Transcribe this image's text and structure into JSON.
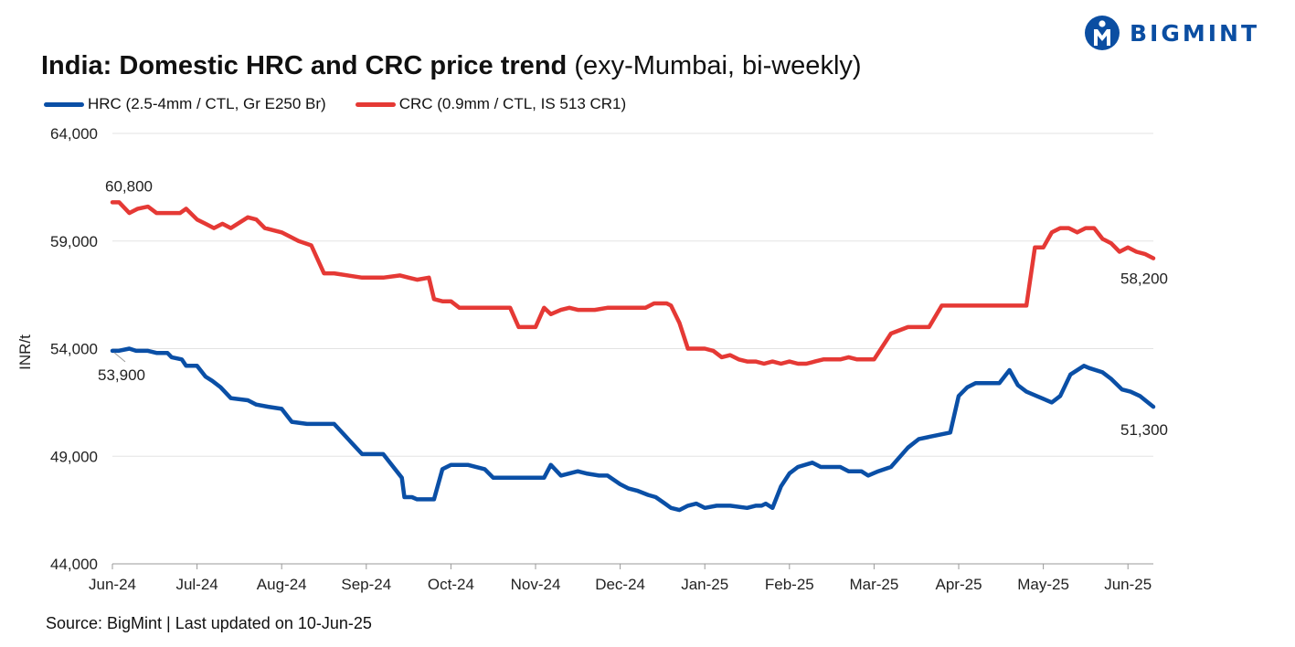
{
  "brand": {
    "name": "BIGMINT",
    "color": "#0b4ea2"
  },
  "title": {
    "main": "India: Domestic HRC and CRC price trend",
    "suffix": "(exy-Mumbai, bi-weekly)"
  },
  "source": "Source: BigMint | Last updated on 10-Jun-25",
  "chart_data": {
    "type": "line",
    "ylabel": "INR/t",
    "xlabel": "",
    "ylim": [
      44000,
      64000
    ],
    "yticks": [
      44000,
      49000,
      54000,
      59000,
      64000
    ],
    "ytick_labels": [
      "44,000",
      "49,000",
      "54,000",
      "59,000",
      "64,000"
    ],
    "x_tick_labels": [
      "Jun-24",
      "Jul-24",
      "Aug-24",
      "Sep-24",
      "Oct-24",
      "Nov-24",
      "Dec-24",
      "Jan-25",
      "Feb-25",
      "Mar-25",
      "Apr-25",
      "May-25",
      "Jun-25"
    ],
    "x_range": [
      0,
      12.3
    ],
    "grid": true,
    "legend_position": "top-left",
    "series": [
      {
        "name": "HRC (2.5-4mm / CTL, Gr E250 Br)",
        "color": "#0a4fa6",
        "x": [
          0,
          0.07,
          0.2,
          0.28,
          0.42,
          0.52,
          0.65,
          0.7,
          0.82,
          0.87,
          1.0,
          1.1,
          1.18,
          1.28,
          1.4,
          1.6,
          1.7,
          1.84,
          2.0,
          2.12,
          2.3,
          2.35,
          2.42,
          2.5,
          2.62,
          2.95,
          3.0,
          3.1,
          3.2,
          3.42,
          3.45,
          3.54,
          3.6,
          3.74,
          3.8,
          3.9,
          4.0,
          4.1,
          4.2,
          4.4,
          4.5,
          4.6,
          4.7,
          4.8,
          5.0,
          5.1,
          5.18,
          5.3,
          5.5,
          5.6,
          5.75,
          5.85,
          6.0,
          6.1,
          6.2,
          6.33,
          6.42,
          6.53,
          6.6,
          6.7,
          6.8,
          6.9,
          7.0,
          7.14,
          7.23,
          7.3,
          7.5,
          7.6,
          7.67,
          7.72,
          7.8,
          7.9,
          8.0,
          8.1,
          8.27,
          8.37,
          8.47,
          8.6,
          8.7,
          8.85,
          8.93,
          9.05,
          9.2,
          9.4,
          9.53,
          9.65,
          9.9,
          10.0,
          10.1,
          10.2,
          10.32,
          10.48,
          10.6,
          10.7,
          10.8,
          10.92,
          11.1,
          11.2,
          11.32,
          11.48,
          11.54,
          11.7,
          11.8,
          11.93,
          12.03,
          12.14,
          12.3
        ],
        "values": [
          53900,
          53900,
          54000,
          53900,
          53900,
          53800,
          53800,
          53600,
          53500,
          53200,
          53200,
          52700,
          52500,
          52200,
          51700,
          51600,
          51400,
          51300,
          51200,
          50600,
          50500,
          50500,
          50500,
          50500,
          50500,
          49100,
          49100,
          49100,
          49100,
          48000,
          47100,
          47100,
          47000,
          47000,
          47000,
          48400,
          48600,
          48600,
          48600,
          48400,
          48000,
          48000,
          48000,
          48000,
          48000,
          48000,
          48600,
          48100,
          48300,
          48200,
          48100,
          48100,
          47700,
          47500,
          47400,
          47200,
          47100,
          46800,
          46600,
          46500,
          46700,
          46800,
          46600,
          46700,
          46700,
          46700,
          46600,
          46700,
          46700,
          46800,
          46600,
          47600,
          48200,
          48500,
          48700,
          48500,
          48500,
          48500,
          48300,
          48300,
          48100,
          48300,
          48500,
          49400,
          49800,
          49900,
          50100,
          51800,
          52200,
          52400,
          52400,
          52400,
          53000,
          52300,
          52000,
          51800,
          51500,
          51800,
          52800,
          53200,
          53100,
          52900,
          52600,
          52100,
          52000,
          51800,
          51300
        ],
        "end_label": "51,300",
        "start_label": "53,900"
      },
      {
        "name": "CRC (0.9mm / CTL, IS 513 CR1)",
        "color": "#e53935",
        "x": [
          0,
          0.08,
          0.2,
          0.3,
          0.42,
          0.52,
          0.65,
          0.7,
          0.8,
          0.87,
          1.0,
          1.1,
          1.2,
          1.3,
          1.4,
          1.6,
          1.7,
          1.8,
          2.0,
          2.1,
          2.2,
          2.35,
          2.5,
          2.62,
          2.95,
          3.0,
          3.1,
          3.2,
          3.4,
          3.5,
          3.6,
          3.74,
          3.8,
          3.9,
          4.0,
          4.1,
          4.2,
          4.4,
          4.5,
          4.6,
          4.7,
          4.8,
          5.0,
          5.1,
          5.18,
          5.3,
          5.4,
          5.5,
          5.6,
          5.7,
          5.85,
          6.0,
          6.1,
          6.2,
          6.3,
          6.4,
          6.5,
          6.55,
          6.6,
          6.7,
          6.8,
          6.9,
          7.0,
          7.1,
          7.2,
          7.3,
          7.4,
          7.5,
          7.6,
          7.7,
          7.8,
          7.9,
          8.0,
          8.1,
          8.2,
          8.3,
          8.4,
          8.5,
          8.6,
          8.7,
          8.8,
          8.9,
          9.0,
          9.2,
          9.4,
          9.52,
          9.65,
          9.8,
          10.0,
          10.1,
          10.2,
          10.5,
          10.6,
          10.7,
          10.8,
          10.9,
          11.0,
          11.1,
          11.2,
          11.3,
          11.4,
          11.5,
          11.6,
          11.7,
          11.8,
          11.9,
          12.0,
          12.1,
          12.2,
          12.3
        ],
        "values": [
          60800,
          60800,
          60300,
          60500,
          60600,
          60300,
          60300,
          60300,
          60300,
          60500,
          60000,
          59800,
          59600,
          59800,
          59600,
          60100,
          60000,
          59600,
          59400,
          59200,
          59000,
          58800,
          57500,
          57500,
          57300,
          57300,
          57300,
          57300,
          57400,
          57300,
          57200,
          57300,
          56300,
          56200,
          56200,
          55900,
          55900,
          55900,
          55900,
          55900,
          55900,
          55000,
          55000,
          55900,
          55600,
          55800,
          55900,
          55800,
          55800,
          55800,
          55900,
          55900,
          55900,
          55900,
          55900,
          56100,
          56100,
          56100,
          56000,
          55200,
          54000,
          54000,
          54000,
          53900,
          53600,
          53700,
          53500,
          53400,
          53400,
          53300,
          53400,
          53300,
          53400,
          53300,
          53300,
          53400,
          53500,
          53500,
          53500,
          53600,
          53500,
          53500,
          53500,
          54700,
          55000,
          55000,
          55000,
          56000,
          56000,
          56000,
          56000,
          56000,
          56000,
          56000,
          56000,
          58700,
          58700,
          59400,
          59600,
          59600,
          59400,
          59600,
          59600,
          59100,
          58900,
          58500,
          58700,
          58500,
          58400,
          58200
        ],
        "end_label": "58,200",
        "start_label": "60,800"
      }
    ]
  }
}
